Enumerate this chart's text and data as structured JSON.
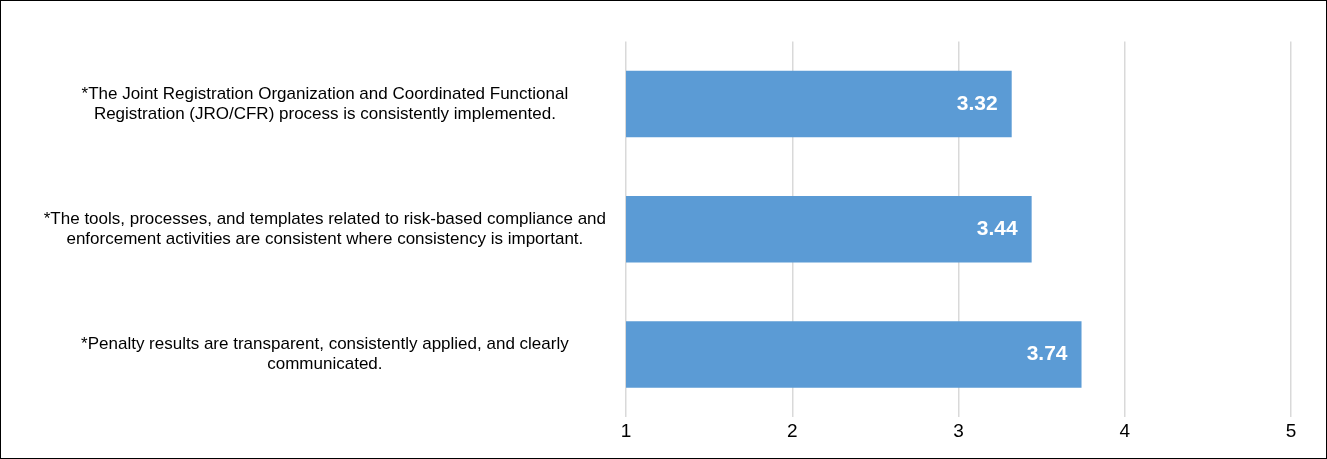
{
  "chart_data": {
    "type": "bar",
    "orientation": "horizontal",
    "categories": [
      "*The Joint Registration Organization and Coordinated Functional Registration (JRO/CFR) process is consistently implemented.",
      "*The tools, processes, and templates related to risk-based compliance and enforcement activities are consistent where consistency is important.",
      "*Penalty results are transparent, consistently applied, and clearly communicated."
    ],
    "values": [
      3.32,
      3.44,
      3.74
    ],
    "color": "#5b9bd5",
    "xlim": [
      1,
      5
    ],
    "xticks": [
      1,
      2,
      3,
      4,
      5
    ],
    "grid": "x",
    "data_labels": true,
    "legend": false
  }
}
